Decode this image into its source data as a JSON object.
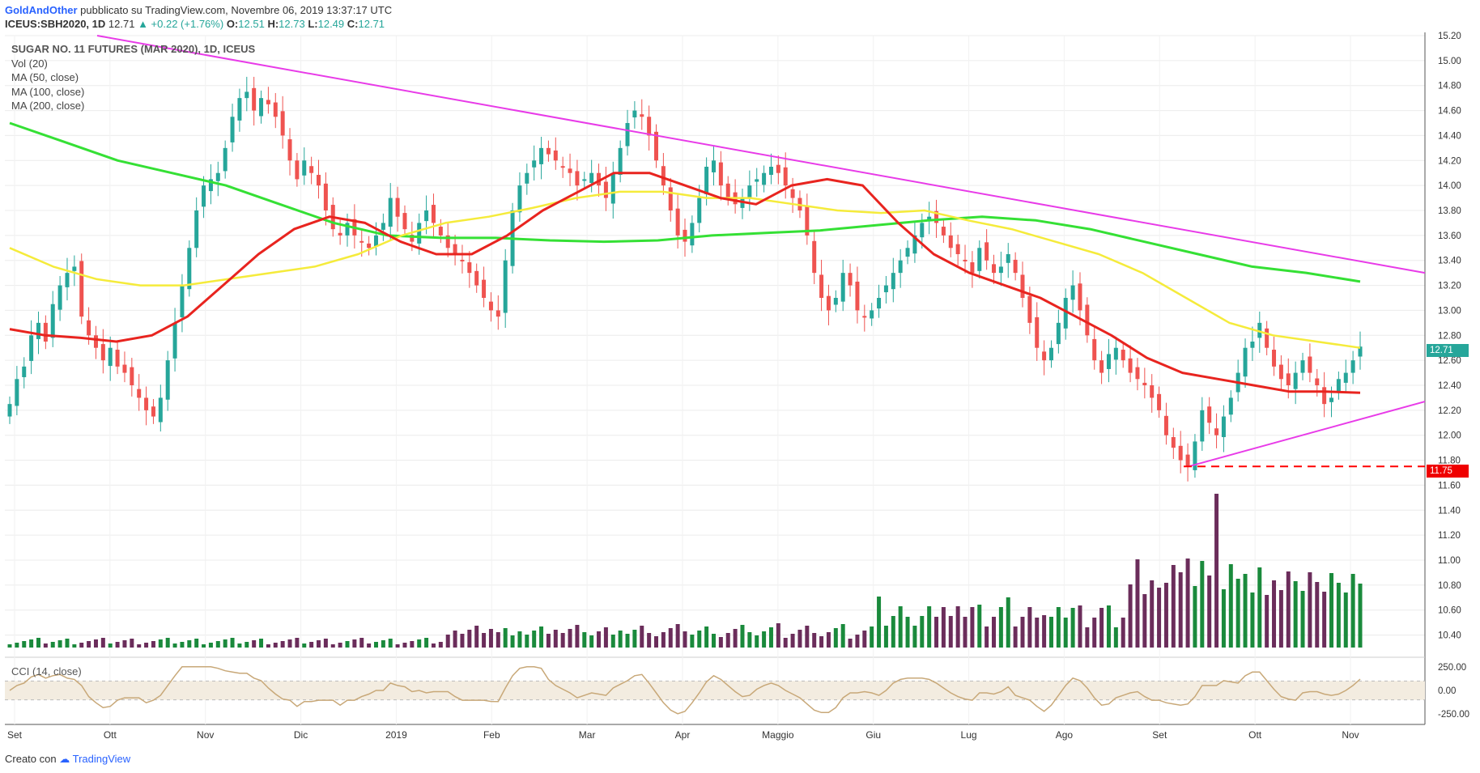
{
  "header": {
    "author": "GoldAndOther",
    "published": "pubblicato su TradingView.com, Novembre 06, 2019 13:37:17 UTC",
    "symbol_line": "ICEUS:SBH2020, 1D",
    "last": "12.71",
    "change": "▲ +0.22 (+1.76%)",
    "ohlc": {
      "o_label": "O:",
      "o": "12.51",
      "h_label": "H:",
      "h": "12.73",
      "l_label": "L:",
      "l": "12.49",
      "c_label": "C:",
      "c": "12.71"
    }
  },
  "legend": {
    "title": "SUGAR NO. 11 FUTURES (MAR 2020), 1D, ICEUS",
    "items": [
      "Vol (20)",
      "MA (50, close)",
      "MA (100, close)",
      "MA (200, close)"
    ]
  },
  "cci_label": "CCI (14, close)",
  "footer": {
    "created": "Creato con",
    "brand": "TradingView"
  },
  "colors": {
    "up": "#26a69a",
    "down": "#ef5350",
    "ma50": "#e8241f",
    "ma100": "#f5eb3b",
    "ma200": "#35e035",
    "trend": "#e83be8",
    "support": "#ff0000",
    "vol_up": "#1a8a3c",
    "vol_down": "#6b2d5b",
    "vol_ma": "#a8d8f0",
    "cci": "#c8a878"
  },
  "chart_data": [
    {
      "type": "candlestick",
      "title": "SUGAR NO. 11 FUTURES (MAR 2020), 1D, ICEUS",
      "y_ticks": [
        "15.20",
        "15.00",
        "14.80",
        "14.60",
        "14.40",
        "14.20",
        "14.00",
        "13.80",
        "13.60",
        "13.40",
        "13.20",
        "13.00",
        "12.80",
        "12.60",
        "12.40",
        "12.20",
        "12.00",
        "11.80",
        "11.60",
        "11.40",
        "11.20",
        "11.00",
        "10.80",
        "10.60",
        "10.40"
      ],
      "ylim": [
        10.3,
        15.2
      ],
      "x_ticks": [
        "Set",
        "Ott",
        "Nov",
        "Dic",
        "2019",
        "Feb",
        "Mar",
        "Apr",
        "Maggio",
        "Giu",
        "Lug",
        "Ago",
        "Set",
        "Ott",
        "Nov"
      ],
      "last_price_label": "12.71",
      "support_label": "11.75",
      "support_value": 11.75,
      "close_series": [
        12.25,
        12.45,
        12.55,
        12.8,
        12.9,
        12.75,
        13.05,
        13.2,
        13.3,
        13.35,
        12.95,
        12.8,
        12.7,
        12.6,
        12.7,
        12.55,
        12.5,
        12.4,
        12.3,
        12.2,
        12.15,
        12.3,
        12.6,
        12.9,
        13.2,
        13.5,
        13.8,
        14.0,
        14.05,
        14.1,
        14.3,
        14.55,
        14.7,
        14.75,
        14.6,
        14.7,
        14.65,
        14.55,
        14.4,
        14.2,
        14.05,
        14.2,
        14.1,
        14.0,
        13.8,
        13.65,
        13.6,
        13.7,
        13.6,
        13.55,
        13.5,
        13.6,
        13.7,
        13.9,
        13.75,
        13.65,
        13.55,
        13.7,
        13.8,
        13.7,
        13.6,
        13.5,
        13.45,
        13.4,
        13.3,
        13.2,
        13.1,
        13.0,
        12.95,
        13.4,
        13.8,
        14.0,
        14.1,
        14.2,
        14.3,
        14.25,
        14.2,
        14.15,
        14.1,
        14.0,
        14.05,
        14.1,
        14.0,
        13.9,
        14.1,
        14.3,
        14.5,
        14.6,
        14.55,
        14.4,
        14.2,
        14.0,
        13.8,
        13.6,
        13.55,
        13.7,
        13.9,
        14.15,
        14.2,
        14.0,
        13.9,
        13.85,
        13.9,
        14.0,
        14.05,
        14.1,
        14.15,
        14.1,
        14.0,
        13.9,
        13.8,
        13.6,
        13.3,
        13.1,
        13.0,
        13.1,
        13.3,
        13.2,
        13.0,
        12.95,
        13.0,
        13.1,
        13.2,
        13.3,
        13.4,
        13.5,
        13.6,
        13.7,
        13.75,
        13.7,
        13.6,
        13.5,
        13.45,
        13.4,
        13.3,
        13.5,
        13.4,
        13.3,
        13.35,
        13.45,
        13.3,
        13.1,
        12.9,
        12.7,
        12.6,
        12.7,
        12.9,
        13.1,
        13.2,
        13.0,
        12.8,
        12.6,
        12.5,
        12.65,
        12.7,
        12.6,
        12.5,
        12.45,
        12.4,
        12.3,
        12.2,
        12.0,
        11.9,
        11.8,
        11.75,
        11.95,
        12.2,
        12.1,
        12.0,
        12.15,
        12.3,
        12.5,
        12.7,
        12.75,
        12.9,
        12.7,
        12.55,
        12.45,
        12.4,
        12.5,
        12.6,
        12.5,
        12.4,
        12.25,
        12.3,
        12.45,
        12.5,
        12.6,
        12.71
      ],
      "ma50": [
        12.85,
        12.8,
        12.78,
        12.75,
        12.8,
        12.95,
        13.2,
        13.45,
        13.65,
        13.75,
        13.7,
        13.55,
        13.45,
        13.45,
        13.6,
        13.8,
        13.95,
        14.1,
        14.1,
        14.0,
        13.9,
        13.85,
        14.0,
        14.05,
        14.0,
        13.7,
        13.45,
        13.3,
        13.2,
        13.1,
        12.95,
        12.8,
        12.62,
        12.5,
        12.45,
        12.4,
        12.35,
        12.35,
        12.34
      ],
      "ma100": [
        13.5,
        13.35,
        13.25,
        13.2,
        13.2,
        13.25,
        13.3,
        13.35,
        13.45,
        13.6,
        13.7,
        13.75,
        13.82,
        13.9,
        13.95,
        13.95,
        13.9,
        13.9,
        13.85,
        13.8,
        13.78,
        13.8,
        13.72,
        13.65,
        13.55,
        13.45,
        13.3,
        13.1,
        12.9,
        12.8,
        12.75,
        12.7
      ],
      "ma200": [
        14.5,
        14.35,
        14.2,
        14.1,
        14.0,
        13.85,
        13.7,
        13.6,
        13.58,
        13.58,
        13.56,
        13.55,
        13.56,
        13.6,
        13.62,
        13.64,
        13.68,
        13.72,
        13.75,
        13.72,
        13.65,
        13.55,
        13.45,
        13.35,
        13.3,
        13.23
      ],
      "trendlines": [
        {
          "from": [
            "start",
            15.2
          ],
          "to": [
            "end",
            13.3
          ]
        },
        {
          "from": [
            "Set",
            11.75
          ],
          "to": [
            "end",
            12.27
          ]
        }
      ]
    },
    {
      "type": "bar",
      "title": "Vol (20)",
      "note": "volume histogram; peak near early September 2019"
    },
    {
      "type": "line",
      "title": "CCI (14, close)",
      "y_ticks": [
        "250.00",
        "0.00",
        "-250.00"
      ],
      "ylim": [
        -300,
        300
      ],
      "bands": [
        100,
        -100
      ]
    }
  ]
}
